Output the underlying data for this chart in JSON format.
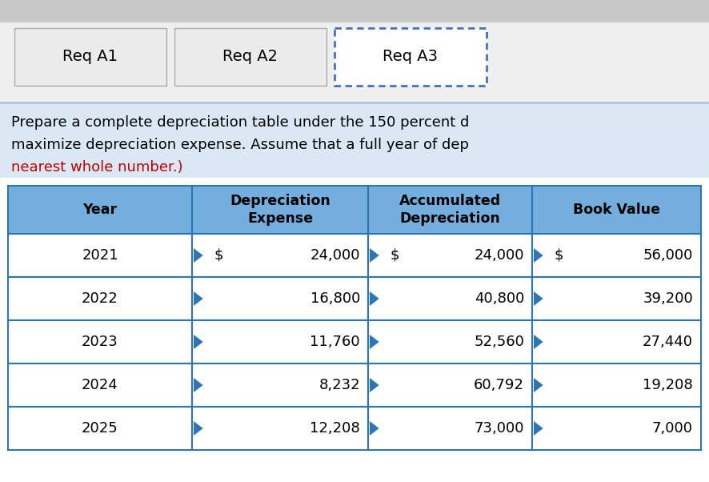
{
  "tab_labels": [
    "Req A1",
    "Req A2",
    "Req A3"
  ],
  "active_tab": 2,
  "instruction_text_line1": "Prepare a complete depreciation table under the 150 percent d",
  "instruction_text_line2": "maximize depreciation expense. Assume that a full year of dep",
  "instruction_text_line3_red": "nearest whole number.)",
  "table_headers": [
    "Year",
    "Depreciation\nExpense",
    "Accumulated\nDepreciation",
    "Book Value"
  ],
  "table_row0_dollars": [
    "",
    "$",
    "$",
    "$"
  ],
  "table_data": [
    [
      "2021",
      "24,000",
      "24,000",
      "56,000"
    ],
    [
      "2022",
      "16,800",
      "40,800",
      "39,200"
    ],
    [
      "2023",
      "11,760",
      "52,560",
      "27,440"
    ],
    [
      "2024",
      "8,232",
      "60,792",
      "19,208"
    ],
    [
      "2025",
      "12,208",
      "73,000",
      "7,000"
    ]
  ],
  "header_bg": "#74AEDE",
  "row_bg_white": "#FFFFFF",
  "border_color": "#2E75B6",
  "tab_bg_active": "#FFFFFF",
  "tab_bg_inactive": "#EBEBEB",
  "instruction_bg": "#DAE8F5",
  "top_bar_bg": "#C8C8C8",
  "active_tab_border": "#4472C4",
  "inactive_tab_border": "#AAAAAA",
  "red_text": "#C00000",
  "fig_bg": "#FFFFFF",
  "triangle_color": "#2E75B6",
  "sep_line_color": "#B0C4D8"
}
